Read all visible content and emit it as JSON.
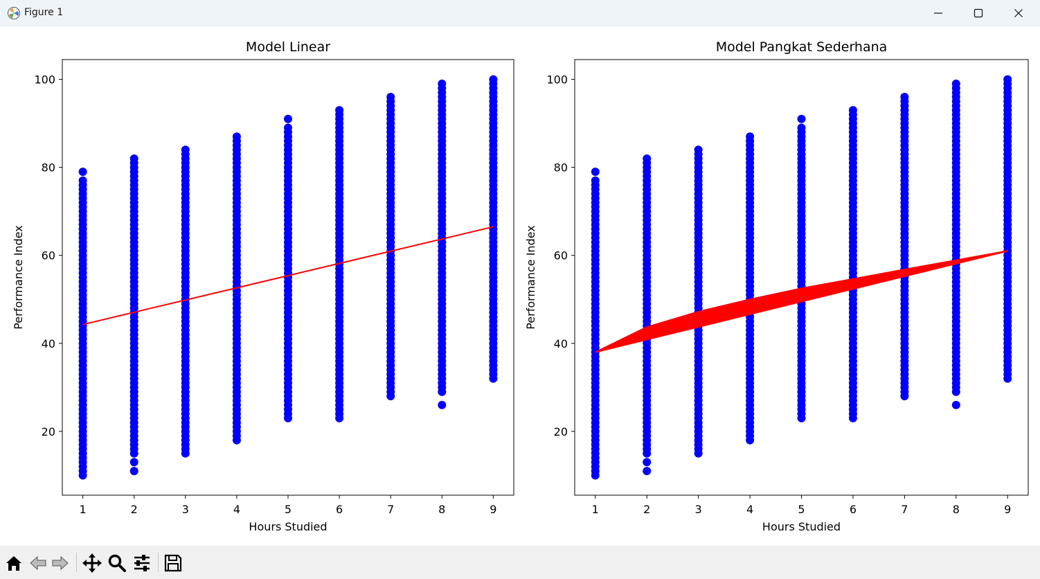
{
  "window": {
    "title": "Figure 1",
    "controls": [
      "minimize-icon",
      "maximize-icon",
      "close-icon"
    ]
  },
  "toolbar": {
    "items": [
      "home-icon",
      "back-icon",
      "forward-icon",
      "pan-icon",
      "zoom-icon",
      "configure-subplots-icon",
      "save-icon"
    ]
  },
  "colors": {
    "points": "#0000ff",
    "fit": "#ff0000",
    "axes": "#000000"
  },
  "chart_data": [
    {
      "type": "scatter",
      "title": "Model Linear",
      "xlabel": "Hours Studied",
      "ylabel": "Performance Index",
      "xlim": [
        0.6,
        9.4
      ],
      "ylim": [
        5.5,
        104.5
      ],
      "xticks": [
        1,
        2,
        3,
        4,
        5,
        6,
        7,
        8,
        9
      ],
      "yticks": [
        20,
        40,
        60,
        80,
        100
      ],
      "grid": false,
      "scatter_columns": [
        {
          "x": 1,
          "min": 10,
          "max": 77,
          "extra": [
            79
          ]
        },
        {
          "x": 2,
          "min": 15,
          "max": 82,
          "extra": [
            13,
            11
          ]
        },
        {
          "x": 3,
          "min": 15,
          "max": 84,
          "extra": []
        },
        {
          "x": 4,
          "min": 18,
          "max": 87,
          "extra": []
        },
        {
          "x": 5,
          "min": 23,
          "max": 89,
          "extra": [
            91
          ]
        },
        {
          "x": 6,
          "min": 23,
          "max": 93,
          "extra": []
        },
        {
          "x": 7,
          "min": 28,
          "max": 96,
          "extra": []
        },
        {
          "x": 8,
          "min": 29,
          "max": 99,
          "extra": [
            26
          ]
        },
        {
          "x": 9,
          "min": 32,
          "max": 100,
          "extra": []
        }
      ],
      "fit": {
        "model": "linear",
        "x": [
          1,
          9
        ],
        "y": [
          44.3,
          66.5
        ]
      }
    },
    {
      "type": "scatter",
      "title": "Model Pangkat Sederhana",
      "xlabel": "Hours Studied",
      "ylabel": "Performance Index",
      "xlim": [
        0.6,
        9.4
      ],
      "ylim": [
        5.5,
        104.5
      ],
      "xticks": [
        1,
        2,
        3,
        4,
        5,
        6,
        7,
        8,
        9
      ],
      "yticks": [
        20,
        40,
        60,
        80,
        100
      ],
      "grid": false,
      "scatter_columns": [
        {
          "x": 1,
          "min": 10,
          "max": 77,
          "extra": [
            79
          ]
        },
        {
          "x": 2,
          "min": 15,
          "max": 82,
          "extra": [
            13,
            11
          ]
        },
        {
          "x": 3,
          "min": 15,
          "max": 84,
          "extra": []
        },
        {
          "x": 4,
          "min": 18,
          "max": 87,
          "extra": []
        },
        {
          "x": 5,
          "min": 23,
          "max": 89,
          "extra": [
            91
          ]
        },
        {
          "x": 6,
          "min": 23,
          "max": 93,
          "extra": []
        },
        {
          "x": 7,
          "min": 28,
          "max": 96,
          "extra": []
        },
        {
          "x": 8,
          "min": 29,
          "max": 99,
          "extra": [
            26
          ]
        },
        {
          "x": 9,
          "min": 32,
          "max": 100,
          "extra": []
        }
      ],
      "fit": {
        "model": "power",
        "x": [
          1,
          2,
          3,
          4,
          5,
          6,
          7,
          8,
          9
        ],
        "y": [
          38.0,
          43.7,
          47.2,
          50.0,
          52.5,
          54.6,
          56.8,
          58.9,
          61.0
        ]
      }
    }
  ]
}
